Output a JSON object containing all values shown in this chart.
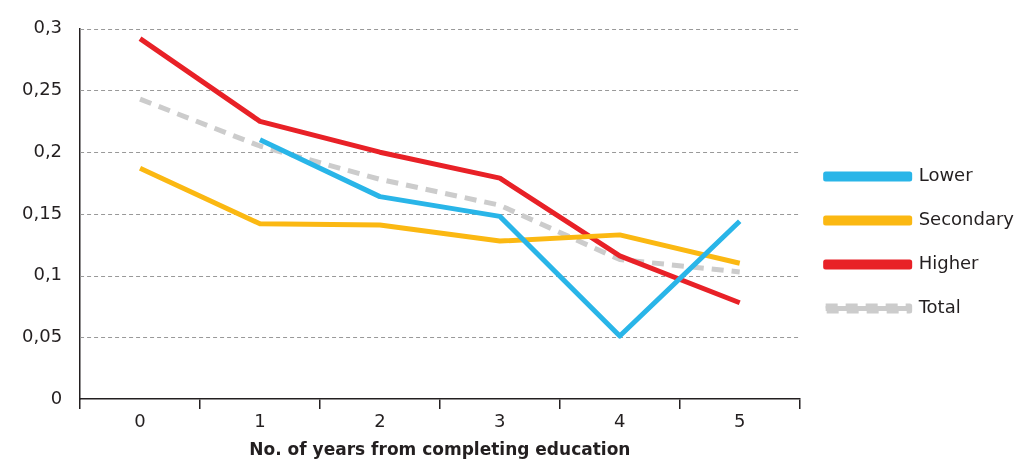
{
  "chart_data": {
    "type": "line",
    "xlabel": "No. of years from completing education",
    "categories": [
      "0",
      "1",
      "2",
      "3",
      "4",
      "5"
    ],
    "series": [
      {
        "name": "Lower",
        "color": "#29b5e8",
        "values": [
          null,
          0.21,
          0.164,
          0.148,
          0.051,
          0.144
        ]
      },
      {
        "name": "Secondary",
        "color": "#fbb812",
        "values": [
          0.187,
          0.142,
          0.141,
          0.128,
          0.133,
          0.11
        ]
      },
      {
        "name": "Higher",
        "color": "#e82127",
        "values": [
          0.292,
          0.225,
          0.2,
          0.179,
          0.116,
          0.078
        ]
      },
      {
        "name": "Total",
        "color": "#cccccc",
        "line_style": "dashed",
        "values": [
          0.243,
          0.205,
          0.178,
          0.157,
          0.113,
          0.103
        ]
      }
    ],
    "ylim": [
      0,
      0.3
    ],
    "yticks": [
      {
        "value": 0,
        "label": "0"
      },
      {
        "value": 0.05,
        "label": "0,05"
      },
      {
        "value": 0.1,
        "label": "0,1"
      },
      {
        "value": 0.15,
        "label": "0,15"
      },
      {
        "value": 0.2,
        "label": "0,2"
      },
      {
        "value": 0.25,
        "label": "0,25"
      },
      {
        "value": 0.3,
        "label": "0,3"
      }
    ],
    "grid": "y",
    "legend": "right",
    "marker": "none",
    "line_style": "solid"
  }
}
